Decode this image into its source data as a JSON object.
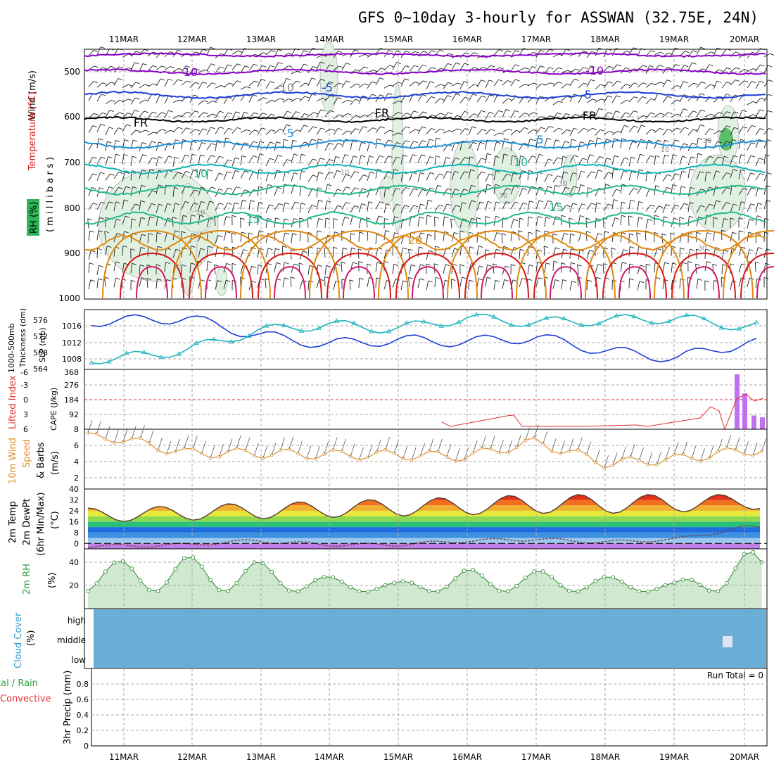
{
  "title": "GFS 0~10day 3-hourly for ASSWAN (32.75E, 24N)",
  "colors": {
    "purple": "#8b00c8",
    "blue": "#1f3fd6",
    "lightblue": "#1a8fd6",
    "teal": "#10b4b4",
    "green_teal": "#22b890",
    "orange": "#e08a10",
    "red": "#d81818",
    "magenta": "#d0186c",
    "gray": "#9a9a9a",
    "rh_green": "#2fb45a",
    "slp": "#1f3fd6",
    "thick": "#20b4c0",
    "cape": "#c070f0",
    "li": "#e03030",
    "wind": "#e09030",
    "cloud": "#6aaed6",
    "rh_fill": "#cfe8cf"
  },
  "dates": [
    "11MAR",
    "12MAR",
    "13MAR",
    "14MAR",
    "15MAR",
    "16MAR",
    "17MAR",
    "18MAR",
    "19MAR",
    "20MAR"
  ],
  "panels": {
    "upper": {
      "ylabel_wind": "Wind (m/s)",
      "ylabel_temp": "Temperature (°C)",
      "ylabel_mb": "( m i l l i b a r s )",
      "ylabel_rh": "RH (%)",
      "yticks": [
        "500",
        "600",
        "700",
        "800",
        "900",
        "1000"
      ],
      "contour_labels": [
        "-10",
        "-10",
        "-10",
        "-5",
        "-5",
        "FR",
        "FR",
        "FR",
        "-5",
        "-5",
        "10",
        "10",
        "15",
        "15",
        "20",
        "10",
        "30",
        "10",
        "30",
        "10",
        "30",
        "30"
      ]
    },
    "slp": {
      "ylabel_a": "1000-500mb",
      "ylabel_b": "Thickness (dm)",
      "ylabel_c": "SLP (mb)",
      "left_ticks": [
        "576",
        "572",
        "568",
        "564"
      ],
      "right_ticks": [
        "1016",
        "1012",
        "1008"
      ]
    },
    "cape": {
      "ylabel_a": "Lifted Index",
      "ylabel_b": "CAPE (J/kg)",
      "left_ticks": [
        "-6",
        "-3",
        "0",
        "3",
        "6"
      ],
      "right_ticks": [
        "368",
        "276",
        "184",
        "92",
        "8"
      ]
    },
    "wind10": {
      "ylabel_a": "10m Wind",
      "ylabel_b": "Speed",
      "ylabel_c": "& Barbs",
      "ylabel_d": "(m/s)",
      "yticks": [
        "6",
        "4",
        "2"
      ]
    },
    "temp2m": {
      "ylabel_a": "2m Temp",
      "ylabel_b": "2m DewPt",
      "ylabel_c": "(6hr Min/Max)",
      "ylabel_d": "(°C)",
      "yticks": [
        "40",
        "32",
        "24",
        "16",
        "8",
        "0"
      ]
    },
    "rh2m": {
      "ylabel_a": "2m RH",
      "ylabel_b": "(%)",
      "yticks": [
        "40",
        "20"
      ]
    },
    "cloud": {
      "ylabel_a": "Cloud Cover",
      "ylabel_b": "(%)",
      "levels": [
        "high",
        "middle",
        "low"
      ]
    },
    "precip": {
      "ylabel_a": "tal / Rain",
      "ylabel_b": "Convective",
      "ylabel_c": "3hr Precip (mm)",
      "yticks": [
        "0.8",
        "0.6",
        "0.4",
        "0.2",
        "0"
      ],
      "run_total": "Run Total = 0"
    }
  },
  "chart_data": [
    {
      "type": "line",
      "title": "1000-500mb Thickness (dm) / SLP (mb)",
      "x": [
        0,
        1,
        2,
        3,
        4,
        5,
        6,
        7,
        8,
        9
      ],
      "x_categories": [
        "11MAR",
        "12MAR",
        "13MAR",
        "14MAR",
        "15MAR",
        "16MAR",
        "17MAR",
        "18MAR",
        "19MAR",
        "20MAR"
      ],
      "series": [
        {
          "name": "SLP (mb)",
          "axis": "right",
          "ylim": [
            1006,
            1019
          ],
          "values": [
            1016.5,
            1017.2,
            1013.5,
            1011.5,
            1012.4,
            1012.0,
            1013.0,
            1010.0,
            1008.5,
            1011.8
          ]
        },
        {
          "name": "1000-500mb Thickness (dm)",
          "axis": "left",
          "ylim": [
            564,
            578
          ],
          "values": [
            566.5,
            568.5,
            573.0,
            574.5,
            573.5,
            576.0,
            575.0,
            575.5,
            576.0,
            574.0
          ]
        }
      ]
    },
    {
      "type": "bar",
      "title": "CAPE (J/kg) / Lifted Index",
      "x_categories": [
        "19.9",
        "20.0",
        "20.1",
        "20.2"
      ],
      "values": [
        368,
        240,
        92,
        80
      ],
      "lifted_index": [
        -1,
        0,
        3,
        2
      ]
    },
    {
      "type": "line",
      "title": "10m Wind Speed (m/s)",
      "x_categories": [
        "11MAR",
        "12MAR",
        "13MAR",
        "14MAR",
        "15MAR",
        "16MAR",
        "17MAR",
        "18MAR",
        "19MAR",
        "20MAR"
      ],
      "values": [
        6.0,
        4.2,
        4.2,
        4.0,
        4.0,
        3.8,
        5.5,
        3.0,
        3.5,
        4.5
      ],
      "ylim": [
        0,
        7
      ]
    },
    {
      "type": "area",
      "title": "2m Temp / 2m DewPt (°C)",
      "x_categories": [
        "11MAR",
        "12MAR",
        "13MAR",
        "14MAR",
        "15MAR",
        "16MAR",
        "17MAR",
        "18MAR",
        "19MAR",
        "20MAR"
      ],
      "series": [
        {
          "name": "2m Temp max",
          "values": [
            26,
            28,
            30,
            31,
            33,
            34,
            36,
            36,
            36,
            36
          ]
        },
        {
          "name": "2m Temp min",
          "values": [
            16,
            17,
            18,
            19,
            20,
            21,
            22,
            22,
            23,
            25
          ]
        },
        {
          "name": "2m DewPt",
          "values": [
            -2,
            -1,
            2,
            -1,
            -1,
            2,
            3,
            1,
            3,
            12
          ]
        }
      ],
      "ylim": [
        -4,
        40
      ]
    },
    {
      "type": "area",
      "title": "2m RH (%)",
      "x_categories": [
        "11MAR",
        "12MAR",
        "13MAR",
        "14MAR",
        "15MAR",
        "16MAR",
        "17MAR",
        "18MAR",
        "19MAR",
        "20MAR"
      ],
      "values": [
        40,
        44,
        40,
        27,
        22,
        33,
        32,
        27,
        22,
        48
      ],
      "ylim": [
        0,
        50
      ]
    },
    {
      "type": "bar",
      "title": "3hr Precip (mm)",
      "values": [
        0,
        0,
        0,
        0,
        0,
        0,
        0,
        0,
        0,
        0
      ],
      "ylim": [
        0,
        1
      ]
    }
  ]
}
